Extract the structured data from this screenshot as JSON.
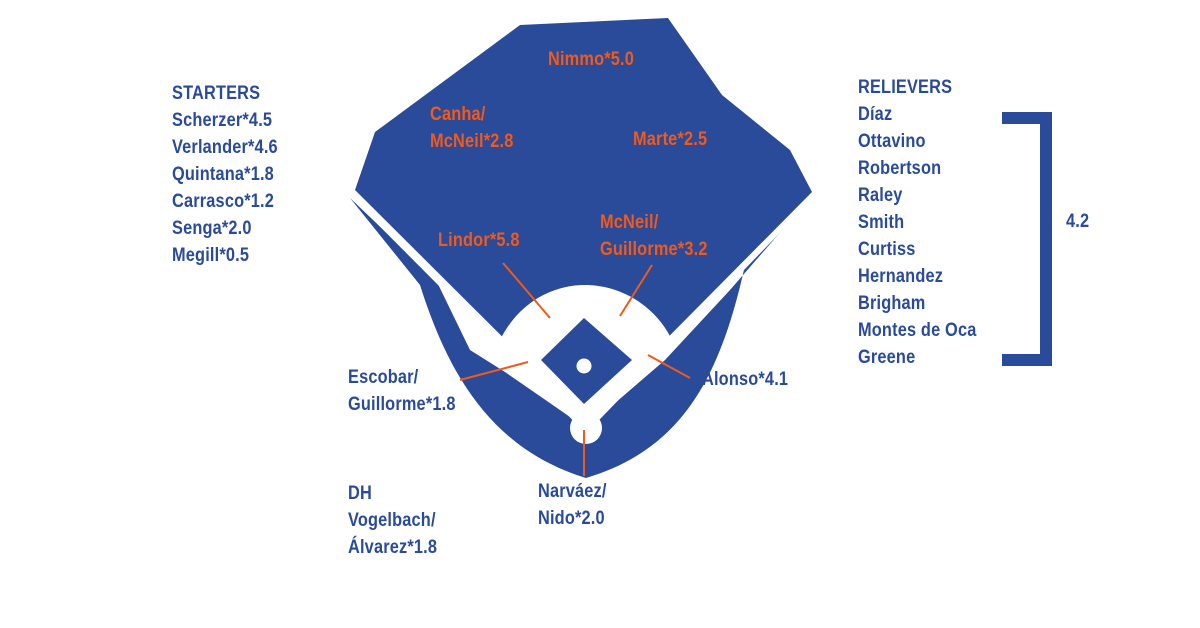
{
  "colors": {
    "field_blue": "#2a4a9a",
    "label_orange": "#f05a1a",
    "line_white": "#ffffff"
  },
  "starters": {
    "heading": "STARTERS",
    "items": [
      "Scherzer*4.5",
      "Verlander*4.6",
      "Quintana*1.8",
      "Carrasco*1.2",
      "Senga*2.0",
      "Megill*0.5"
    ]
  },
  "relievers": {
    "heading": "RELIEVERS",
    "items": [
      "Díaz",
      "Ottavino",
      "Robertson",
      "Raley",
      "Smith",
      "Curtiss",
      "Hernandez",
      "Brigham",
      "Montes de Oca",
      "Greene"
    ],
    "total": "4.2"
  },
  "positions": {
    "cf": [
      "Nimmo*5.0"
    ],
    "lf": [
      "Canha/",
      "McNeil*2.8"
    ],
    "rf": [
      "Marte*2.5"
    ],
    "ss": [
      "Lindor*5.8"
    ],
    "second": [
      "McNeil/",
      "Guillorme*3.2"
    ],
    "third": [
      "Escobar/",
      "Guillorme*1.8"
    ],
    "first": [
      "Alonso*4.1"
    ],
    "catcher": [
      "Narváez/",
      "Nido*2.0"
    ]
  },
  "dh": {
    "heading": "DH",
    "items": [
      "Vogelbach/",
      "Álvarez*1.8"
    ]
  }
}
